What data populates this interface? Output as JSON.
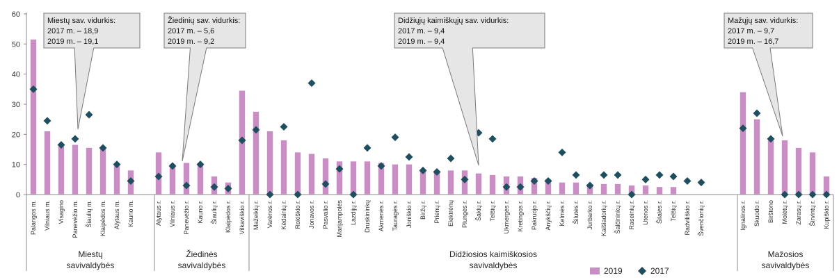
{
  "chart_data": {
    "type": "bar",
    "ylim": [
      0,
      60
    ],
    "yticks": [
      0,
      10,
      20,
      30,
      40,
      50,
      60
    ],
    "grid": false,
    "legend_position": "bottom-right",
    "colors": {
      "bar_2019": "#c98fc4",
      "marker_2017": "#1f4e5f"
    },
    "groups": [
      {
        "label_lines": [
          "Miestų",
          "savivaldybės"
        ],
        "range": [
          0,
          9
        ]
      },
      {
        "label_lines": [
          "Žiedinės",
          "savivaldybės"
        ],
        "range": [
          9,
          15
        ]
      },
      {
        "label_lines": [
          "Didžiosios kaimiškosios",
          "savivaldybės"
        ],
        "range": [
          15,
          51
        ]
      },
      {
        "label_lines": [
          "Mažosios",
          "savivaldybės"
        ],
        "range": [
          51,
          58
        ]
      }
    ],
    "categories": [
      "Palangos m.",
      "Vilniaus m.",
      "Visagino",
      "Panevėžio m.",
      "Šiaulių m.",
      "Klaipėdos m.",
      "Alytaus m.",
      "Kauno m.",
      "",
      "Alytaus r.",
      "Vilniaus r.",
      "Panevėžio r.",
      "Kauno r.",
      "Šiaulių r.",
      "Klaipėdos r.",
      "Vilkaviškio r.",
      "Mažeikių r.",
      "Varėnos r.",
      "Kėdainių r.",
      "Rokiškio r.",
      "Jonavos r.",
      "Pasvalio r.",
      "Marijampolės",
      "Lazdijų r.",
      "Druskininkų",
      "Akmenės r.",
      "Tauragės r.",
      "Joniškio r.",
      "Biržų r.",
      "Prienų r.",
      "Elektrėnų",
      "Plungės r.",
      "Šakių r.",
      "Telšių r.",
      "Ukmergės r.",
      "Kretingos r.",
      "Pakruojo r.",
      "Anykščių r.",
      "Kelmės r.",
      "Šilutės r.",
      "Jurbarko r.",
      "Kaišiadorių r.",
      "Šalčininkų r.",
      "Raseinių r.",
      "Utenos r.",
      "Šilalės r.",
      "Telšių r.",
      "Radviliškio r.",
      "Švenčionių r.",
      "",
      "",
      "Ignalinos r.",
      "Skuodo r.",
      "Birštono",
      "Molėtų r.",
      "Zarasų r.",
      "Širvintų r.",
      "Kupiškio r."
    ],
    "series": [
      {
        "name": "2019",
        "kind": "bar",
        "values": [
          51.5,
          21,
          16,
          16.5,
          15.5,
          15.5,
          9.5,
          8,
          null,
          14,
          10,
          10.5,
          10,
          6,
          4,
          34.5,
          27.5,
          21,
          18,
          14,
          13.5,
          12,
          11,
          11,
          11,
          10.5,
          10,
          10,
          8,
          8,
          8,
          8,
          7,
          6.5,
          6,
          6,
          5.5,
          5,
          4,
          4,
          3.5,
          3.5,
          3.5,
          3,
          3,
          2.5,
          2.5,
          null,
          null,
          null,
          null,
          34,
          25,
          18,
          18,
          15.5,
          14,
          6
        ]
      },
      {
        "name": "2017",
        "kind": "marker",
        "values": [
          35,
          24.5,
          16.5,
          18.5,
          26.5,
          15.5,
          10,
          4.5,
          null,
          6,
          9.5,
          3,
          10,
          2.5,
          2,
          18,
          21.5,
          0,
          22.5,
          0,
          37,
          3.5,
          8.5,
          0,
          15.5,
          9.5,
          19,
          12.5,
          8,
          7.5,
          12,
          5,
          20.5,
          18.5,
          2.5,
          2.5,
          4.5,
          4.5,
          14,
          6.5,
          3,
          6.5,
          6.5,
          0,
          5,
          6.5,
          6,
          4.5,
          4,
          null,
          null,
          22,
          27,
          18.5,
          0,
          0,
          0,
          0
        ]
      }
    ],
    "annotations": [
      {
        "lines": [
          "Miestų sav. vidurkis:",
          "2017 m. – 18,9",
          "2019 m. – 19,1"
        ],
        "points_to": 3
      },
      {
        "lines": [
          "Žiedinių sav. vidurkis:",
          "2017 m. – 5,6",
          "2019 m. – 9,2"
        ],
        "points_to": 11
      },
      {
        "lines": [
          "Didžiųjų kaimiškųjų sav. vidurkis:",
          "2017 m. – 9,4",
          "2019 m. – 9,4"
        ],
        "points_to": 31
      },
      {
        "lines": [
          "Mažųjų sav. vidurkis:",
          "2017 m. – 9,7",
          "2019 m. – 16,7"
        ],
        "points_to": 54
      }
    ],
    "legend": [
      {
        "label": "2019",
        "series": 0
      },
      {
        "label": "2017",
        "series": 1
      }
    ]
  }
}
